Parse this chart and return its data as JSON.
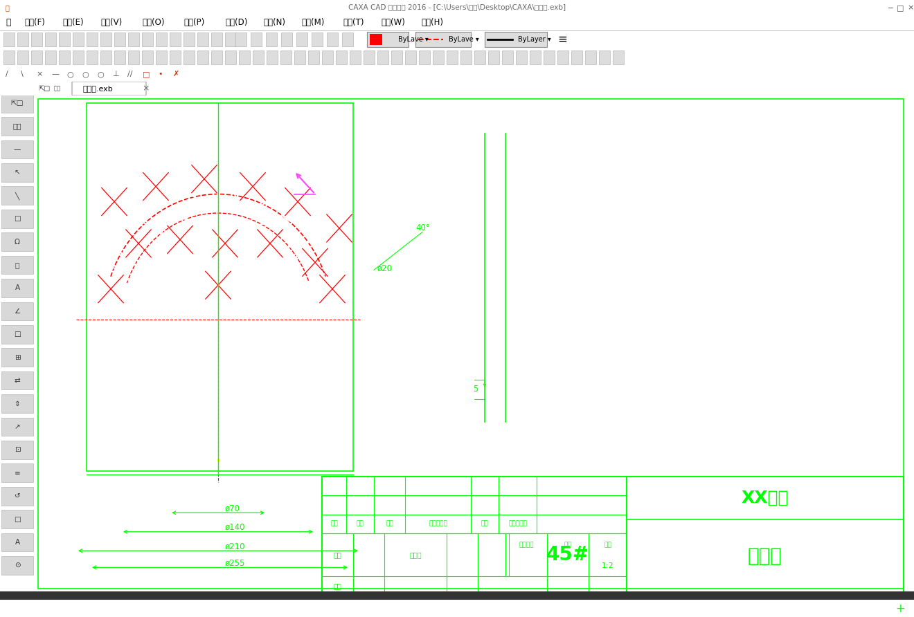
{
  "title_text": "CAXA CAD 电子图板 2016 - [C:\\Users\\李超\\Desktop\\CAXA\\折流板.exb]",
  "menu_items": [
    "文件(F)",
    "编辑(E)",
    "视图(V)",
    "格式(O)",
    "幅面(P)",
    "绘图(D)",
    "标注(N)",
    "修改(M)",
    "工具(T)",
    "窗口(W)",
    "帮助(H)"
  ],
  "tab_text": "折流板.exb",
  "green": "#00ff00",
  "white": "#ffffff",
  "red": "#ff0000",
  "magenta": "#ff44ff",
  "yellow": "#ffff00",
  "gray_bg": "#f0f0f0",
  "dark_gray": "#c8c8c8",
  "sidebar_bg": "#e8e8e8",
  "drawing_bg": "#000000",
  "title_bg": "#f0f0f0",
  "menu_bg": "#f0f0f0"
}
